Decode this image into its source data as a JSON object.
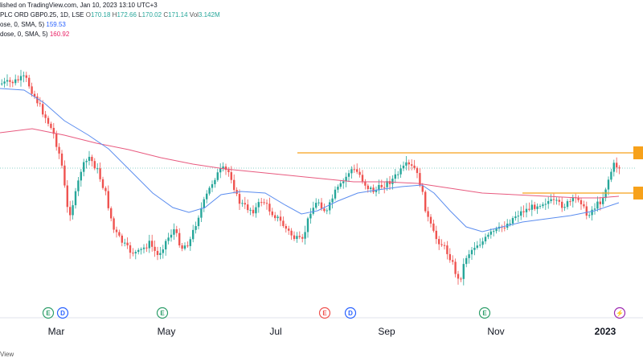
{
  "header": {
    "published": "lished on TradingView.com, Jan 10, 2023 13:10 UTC+3",
    "symbol": "PLC ORD GBP0.25, 1D, LSE",
    "o_label": "O",
    "o_value": "170.18",
    "h_label": "H",
    "h_value": "172.66",
    "l_label": "L",
    "l_value": "170.02",
    "c_label": "C",
    "c_value": "171.14",
    "vol_label": "Vol",
    "vol_value": "3.142M",
    "ma1_label": "ose, 0, SMA, 5)",
    "ma1_value": "159.53",
    "ma2_label": "dose, 0, SMA, 5)",
    "ma2_value": "160.92"
  },
  "footer": {
    "text": "View"
  },
  "colors": {
    "up": "#26a69a",
    "down": "#ef5350",
    "ma_fast": "#5b8def",
    "ma_slow": "#e85a7f",
    "level": "#f7a11a",
    "price_line": "#26a69a"
  },
  "chart_data": {
    "type": "candlestick",
    "x_ticks": [
      "Mar",
      "May",
      "Jul",
      "Sep",
      "Nov",
      "2023"
    ],
    "event_markers": [
      {
        "kind": "earnings",
        "letter": "E",
        "month": "Feb",
        "color": "#2e9e6a"
      },
      {
        "kind": "dividend",
        "letter": "D",
        "month": "Feb",
        "color": "#2962ff"
      },
      {
        "kind": "earnings",
        "letter": "E",
        "month": "Apr",
        "color": "#2e9e6a"
      },
      {
        "kind": "earnings",
        "letter": "E",
        "month": "Aug",
        "color": "#ef5350"
      },
      {
        "kind": "dividend",
        "letter": "D",
        "month": "Aug",
        "color": "#2962ff"
      },
      {
        "kind": "earnings",
        "letter": "E",
        "month": "Oct",
        "color": "#2e9e6a"
      },
      {
        "kind": "split",
        "letter": "⚡",
        "month": "Jan",
        "color": "#9c27b0"
      }
    ],
    "close_path": [
      [
        0,
        104
      ],
      [
        15,
        102
      ],
      [
        30,
        96
      ],
      [
        42,
        120
      ],
      [
        55,
        145
      ],
      [
        65,
        165
      ],
      [
        75,
        200
      ],
      [
        84,
        270
      ],
      [
        92,
        245
      ],
      [
        100,
        210
      ],
      [
        110,
        195
      ],
      [
        120,
        212
      ],
      [
        130,
        240
      ],
      [
        140,
        285
      ],
      [
        150,
        300
      ],
      [
        160,
        312
      ],
      [
        170,
        315
      ],
      [
        185,
        302
      ],
      [
        195,
        318
      ],
      [
        205,
        300
      ],
      [
        215,
        285
      ],
      [
        225,
        308
      ],
      [
        235,
        300
      ],
      [
        245,
        270
      ],
      [
        255,
        245
      ],
      [
        265,
        222
      ],
      [
        275,
        210
      ],
      [
        285,
        215
      ],
      [
        295,
        250
      ],
      [
        305,
        258
      ],
      [
        315,
        262
      ],
      [
        325,
        248
      ],
      [
        335,
        262
      ],
      [
        345,
        272
      ],
      [
        355,
        285
      ],
      [
        365,
        296
      ],
      [
        375,
        300
      ],
      [
        385,
        262
      ],
      [
        395,
        250
      ],
      [
        405,
        265
      ],
      [
        415,
        240
      ],
      [
        425,
        228
      ],
      [
        435,
        210
      ],
      [
        445,
        215
      ],
      [
        455,
        232
      ],
      [
        465,
        238
      ],
      [
        475,
        230
      ],
      [
        485,
        225
      ],
      [
        495,
        215
      ],
      [
        505,
        205
      ],
      [
        515,
        210
      ],
      [
        522,
        230
      ],
      [
        530,
        268
      ],
      [
        540,
        295
      ],
      [
        550,
        305
      ],
      [
        560,
        322
      ],
      [
        570,
        352
      ],
      [
        578,
        320
      ],
      [
        590,
        305
      ],
      [
        600,
        300
      ],
      [
        610,
        290
      ],
      [
        620,
        285
      ],
      [
        630,
        278
      ],
      [
        640,
        268
      ],
      [
        650,
        262
      ],
      [
        660,
        258
      ],
      [
        670,
        253
      ],
      [
        680,
        250
      ],
      [
        690,
        252
      ],
      [
        700,
        256
      ],
      [
        710,
        250
      ],
      [
        720,
        245
      ],
      [
        728,
        268
      ],
      [
        738,
        258
      ],
      [
        748,
        248
      ],
      [
        755,
        225
      ],
      [
        762,
        205
      ],
      [
        770,
        208
      ]
    ],
    "sma_fast_path": [
      [
        0,
        110
      ],
      [
        30,
        112
      ],
      [
        55,
        128
      ],
      [
        80,
        150
      ],
      [
        110,
        168
      ],
      [
        135,
        185
      ],
      [
        160,
        210
      ],
      [
        190,
        240
      ],
      [
        215,
        258
      ],
      [
        235,
        264
      ],
      [
        255,
        258
      ],
      [
        275,
        242
      ],
      [
        300,
        238
      ],
      [
        330,
        240
      ],
      [
        355,
        255
      ],
      [
        375,
        266
      ],
      [
        395,
        262
      ],
      [
        420,
        250
      ],
      [
        445,
        240
      ],
      [
        470,
        236
      ],
      [
        500,
        232
      ],
      [
        525,
        230
      ],
      [
        540,
        240
      ],
      [
        560,
        262
      ],
      [
        580,
        282
      ],
      [
        600,
        288
      ],
      [
        625,
        282
      ],
      [
        650,
        276
      ],
      [
        680,
        272
      ],
      [
        710,
        268
      ],
      [
        740,
        262
      ],
      [
        770,
        252
      ]
    ],
    "sma_slow_path": [
      [
        0,
        165
      ],
      [
        40,
        160
      ],
      [
        80,
        168
      ],
      [
        120,
        178
      ],
      [
        160,
        186
      ],
      [
        200,
        196
      ],
      [
        240,
        204
      ],
      [
        280,
        210
      ],
      [
        320,
        214
      ],
      [
        360,
        218
      ],
      [
        400,
        222
      ],
      [
        440,
        226
      ],
      [
        480,
        226
      ],
      [
        520,
        228
      ],
      [
        560,
        234
      ],
      [
        600,
        240
      ],
      [
        640,
        242
      ],
      [
        680,
        244
      ],
      [
        720,
        246
      ],
      [
        745,
        246
      ],
      [
        770,
        244
      ]
    ],
    "horizontal_levels": [
      {
        "x_start": 370,
        "x_end": 790,
        "y": 190
      },
      {
        "x_start": 650,
        "x_end": 790,
        "y": 240
      }
    ],
    "last_price_line_y": 209
  }
}
